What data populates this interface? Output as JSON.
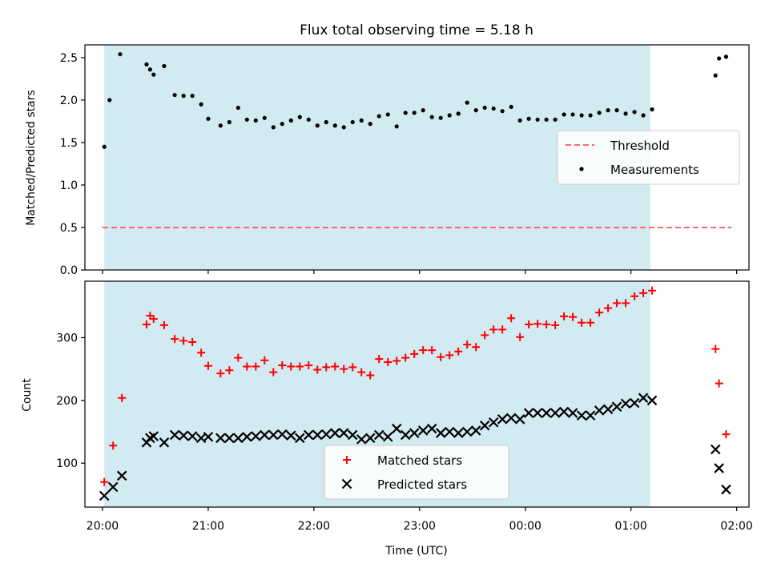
{
  "chart_data": [
    {
      "type": "scatter",
      "title": "Flux total observing time = 5.18 h",
      "xlabel": "",
      "ylabel": "Matched/Predicted stars",
      "x_range": [
        "19:50",
        "02:07"
      ],
      "ylim": [
        0,
        2.65
      ],
      "yticks": [
        0.0,
        0.5,
        1.0,
        1.5,
        2.0,
        2.5
      ],
      "ytick_labels": [
        "0.0",
        "0.5",
        "1.0",
        "1.5",
        "2.0",
        "2.5"
      ],
      "shaded_interval": [
        "20:01",
        "01:11"
      ],
      "shade_color": "#add8e6",
      "legend_position": "center-right",
      "series": [
        {
          "name": "Threshold",
          "kind": "dashed-line",
          "color": "#ff6666",
          "x": [
            "20:00",
            "01:57"
          ],
          "y": [
            0.5,
            0.5
          ]
        },
        {
          "name": "Measurements",
          "kind": "dots",
          "color": "#000000",
          "x": [
            "20:01",
            "20:04",
            "20:10",
            "20:25",
            "20:27",
            "20:29",
            "20:35",
            "20:41",
            "20:46",
            "20:51",
            "20:56",
            "21:00",
            "21:07",
            "21:12",
            "21:17",
            "21:22",
            "21:27",
            "21:32",
            "21:37",
            "21:42",
            "21:47",
            "21:52",
            "21:57",
            "22:02",
            "22:07",
            "22:12",
            "22:17",
            "22:22",
            "22:27",
            "22:32",
            "22:37",
            "22:42",
            "22:47",
            "22:52",
            "22:57",
            "23:02",
            "23:07",
            "23:12",
            "23:17",
            "23:22",
            "23:27",
            "23:32",
            "23:37",
            "23:42",
            "23:47",
            "23:52",
            "23:57",
            "00:02",
            "00:07",
            "00:12",
            "00:17",
            "00:22",
            "00:27",
            "00:32",
            "00:37",
            "00:42",
            "00:47",
            "00:52",
            "00:57",
            "01:02",
            "01:07",
            "01:12",
            "01:48",
            "01:50",
            "01:54"
          ],
          "y": [
            1.45,
            2.0,
            2.54,
            2.42,
            2.36,
            2.3,
            2.4,
            2.06,
            2.05,
            2.05,
            1.95,
            1.78,
            1.7,
            1.74,
            1.91,
            1.77,
            1.76,
            1.79,
            1.68,
            1.72,
            1.76,
            1.8,
            1.77,
            1.7,
            1.74,
            1.7,
            1.68,
            1.74,
            1.76,
            1.72,
            1.81,
            1.83,
            1.69,
            1.85,
            1.85,
            1.88,
            1.8,
            1.79,
            1.82,
            1.84,
            1.97,
            1.88,
            1.91,
            1.9,
            1.87,
            1.92,
            1.76,
            1.78,
            1.77,
            1.77,
            1.77,
            1.83,
            1.83,
            1.82,
            1.82,
            1.85,
            1.88,
            1.88,
            1.84,
            1.86,
            1.82,
            1.89,
            2.29,
            2.49,
            2.51
          ]
        }
      ]
    },
    {
      "type": "scatter",
      "xlabel": "Time (UTC)",
      "ylabel": "Count",
      "x_range": [
        "19:50",
        "02:07"
      ],
      "xticks": [
        "20:00",
        "21:00",
        "22:00",
        "23:00",
        "00:00",
        "01:00",
        "02:00"
      ],
      "ylim": [
        30,
        390
      ],
      "yticks": [
        100,
        200,
        300
      ],
      "ytick_labels": [
        "100",
        "200",
        "300"
      ],
      "shaded_interval": [
        "20:01",
        "01:11"
      ],
      "shade_color": "#add8e6",
      "legend_position": "bottom-center",
      "series": [
        {
          "name": "Matched stars",
          "kind": "plus",
          "color": "#ff0000",
          "x": [
            "20:01",
            "20:06",
            "20:11",
            "20:25",
            "20:27",
            "20:29",
            "20:35",
            "20:41",
            "20:46",
            "20:51",
            "20:56",
            "21:00",
            "21:07",
            "21:12",
            "21:17",
            "21:22",
            "21:27",
            "21:32",
            "21:37",
            "21:42",
            "21:47",
            "21:52",
            "21:57",
            "22:02",
            "22:07",
            "22:12",
            "22:17",
            "22:22",
            "22:27",
            "22:32",
            "22:37",
            "22:42",
            "22:47",
            "22:52",
            "22:57",
            "23:02",
            "23:07",
            "23:12",
            "23:17",
            "23:22",
            "23:27",
            "23:32",
            "23:37",
            "23:42",
            "23:47",
            "23:52",
            "23:57",
            "00:02",
            "00:07",
            "00:12",
            "00:17",
            "00:22",
            "00:27",
            "00:32",
            "00:37",
            "00:42",
            "00:47",
            "00:52",
            "00:57",
            "01:02",
            "01:07",
            "01:12",
            "01:48",
            "01:50",
            "01:54"
          ],
          "y": [
            70,
            128,
            204,
            321,
            335,
            330,
            320,
            298,
            295,
            293,
            276,
            255,
            243,
            248,
            268,
            254,
            254,
            264,
            245,
            256,
            254,
            254,
            256,
            249,
            253,
            254,
            250,
            253,
            245,
            240,
            266,
            261,
            263,
            268,
            274,
            280,
            280,
            269,
            272,
            278,
            289,
            285,
            304,
            313,
            313,
            331,
            301,
            321,
            322,
            321,
            320,
            334,
            333,
            324,
            324,
            340,
            347,
            355,
            355,
            366,
            371,
            375,
            282,
            227,
            146
          ]
        },
        {
          "name": "Predicted stars",
          "kind": "x",
          "color": "#000000",
          "x": [
            "20:01",
            "20:06",
            "20:11",
            "20:25",
            "20:27",
            "20:29",
            "20:35",
            "20:41",
            "20:46",
            "20:51",
            "20:56",
            "21:00",
            "21:07",
            "21:12",
            "21:17",
            "21:22",
            "21:27",
            "21:32",
            "21:37",
            "21:42",
            "21:47",
            "21:52",
            "21:57",
            "22:02",
            "22:07",
            "22:12",
            "22:17",
            "22:22",
            "22:27",
            "22:32",
            "22:37",
            "22:42",
            "22:47",
            "22:52",
            "22:57",
            "23:02",
            "23:07",
            "23:12",
            "23:17",
            "23:22",
            "23:27",
            "23:32",
            "23:37",
            "23:42",
            "23:47",
            "23:52",
            "23:57",
            "00:02",
            "00:07",
            "00:12",
            "00:17",
            "00:22",
            "00:27",
            "00:32",
            "00:37",
            "00:42",
            "00:47",
            "00:52",
            "00:57",
            "01:02",
            "01:07",
            "01:12",
            "01:48",
            "01:50",
            "01:54"
          ],
          "y": [
            48,
            62,
            80,
            133,
            140,
            143,
            133,
            145,
            144,
            143,
            140,
            142,
            140,
            140,
            140,
            142,
            143,
            145,
            145,
            146,
            144,
            140,
            145,
            145,
            146,
            148,
            148,
            145,
            138,
            140,
            145,
            142,
            155,
            145,
            148,
            152,
            155,
            148,
            150,
            148,
            150,
            152,
            160,
            165,
            170,
            172,
            170,
            180,
            180,
            180,
            180,
            182,
            180,
            176,
            176,
            184,
            186,
            190,
            195,
            196,
            204,
            200,
            122,
            92,
            58
          ]
        }
      ]
    }
  ]
}
